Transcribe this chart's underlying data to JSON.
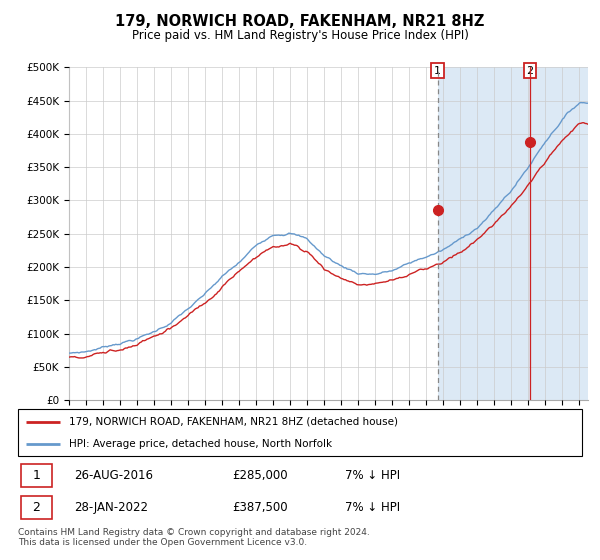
{
  "title": "179, NORWICH ROAD, FAKENHAM, NR21 8HZ",
  "subtitle": "Price paid vs. HM Land Registry's House Price Index (HPI)",
  "ylabel_ticks": [
    "£0",
    "£50K",
    "£100K",
    "£150K",
    "£200K",
    "£250K",
    "£300K",
    "£350K",
    "£400K",
    "£450K",
    "£500K"
  ],
  "ytick_values": [
    0,
    50000,
    100000,
    150000,
    200000,
    250000,
    300000,
    350000,
    400000,
    450000,
    500000
  ],
  "ylim": [
    0,
    500000
  ],
  "sale1_year": 2016.667,
  "sale1_price": 285000,
  "sale2_year": 2022.083,
  "sale2_price": 387500,
  "legend_line1": "179, NORWICH ROAD, FAKENHAM, NR21 8HZ (detached house)",
  "legend_line2": "HPI: Average price, detached house, North Norfolk",
  "table_row1_num": "1",
  "table_row1_date": "26-AUG-2016",
  "table_row1_price": "£285,000",
  "table_row1_hpi": "7% ↓ HPI",
  "table_row2_num": "2",
  "table_row2_date": "28-JAN-2022",
  "table_row2_price": "£387,500",
  "table_row2_hpi": "7% ↓ HPI",
  "footnote": "Contains HM Land Registry data © Crown copyright and database right 2024.\nThis data is licensed under the Open Government Licence v3.0.",
  "line_color_hpi": "#6699cc",
  "line_color_price": "#cc2222",
  "plot_bg_color": "#ffffff",
  "shade_bg_color": "#dce9f5",
  "marker_color": "#cc2222",
  "dashed_line_color": "#999999",
  "solid_line_color": "#cc2222",
  "xlim_start": 1995,
  "xlim_end": 2025.5
}
